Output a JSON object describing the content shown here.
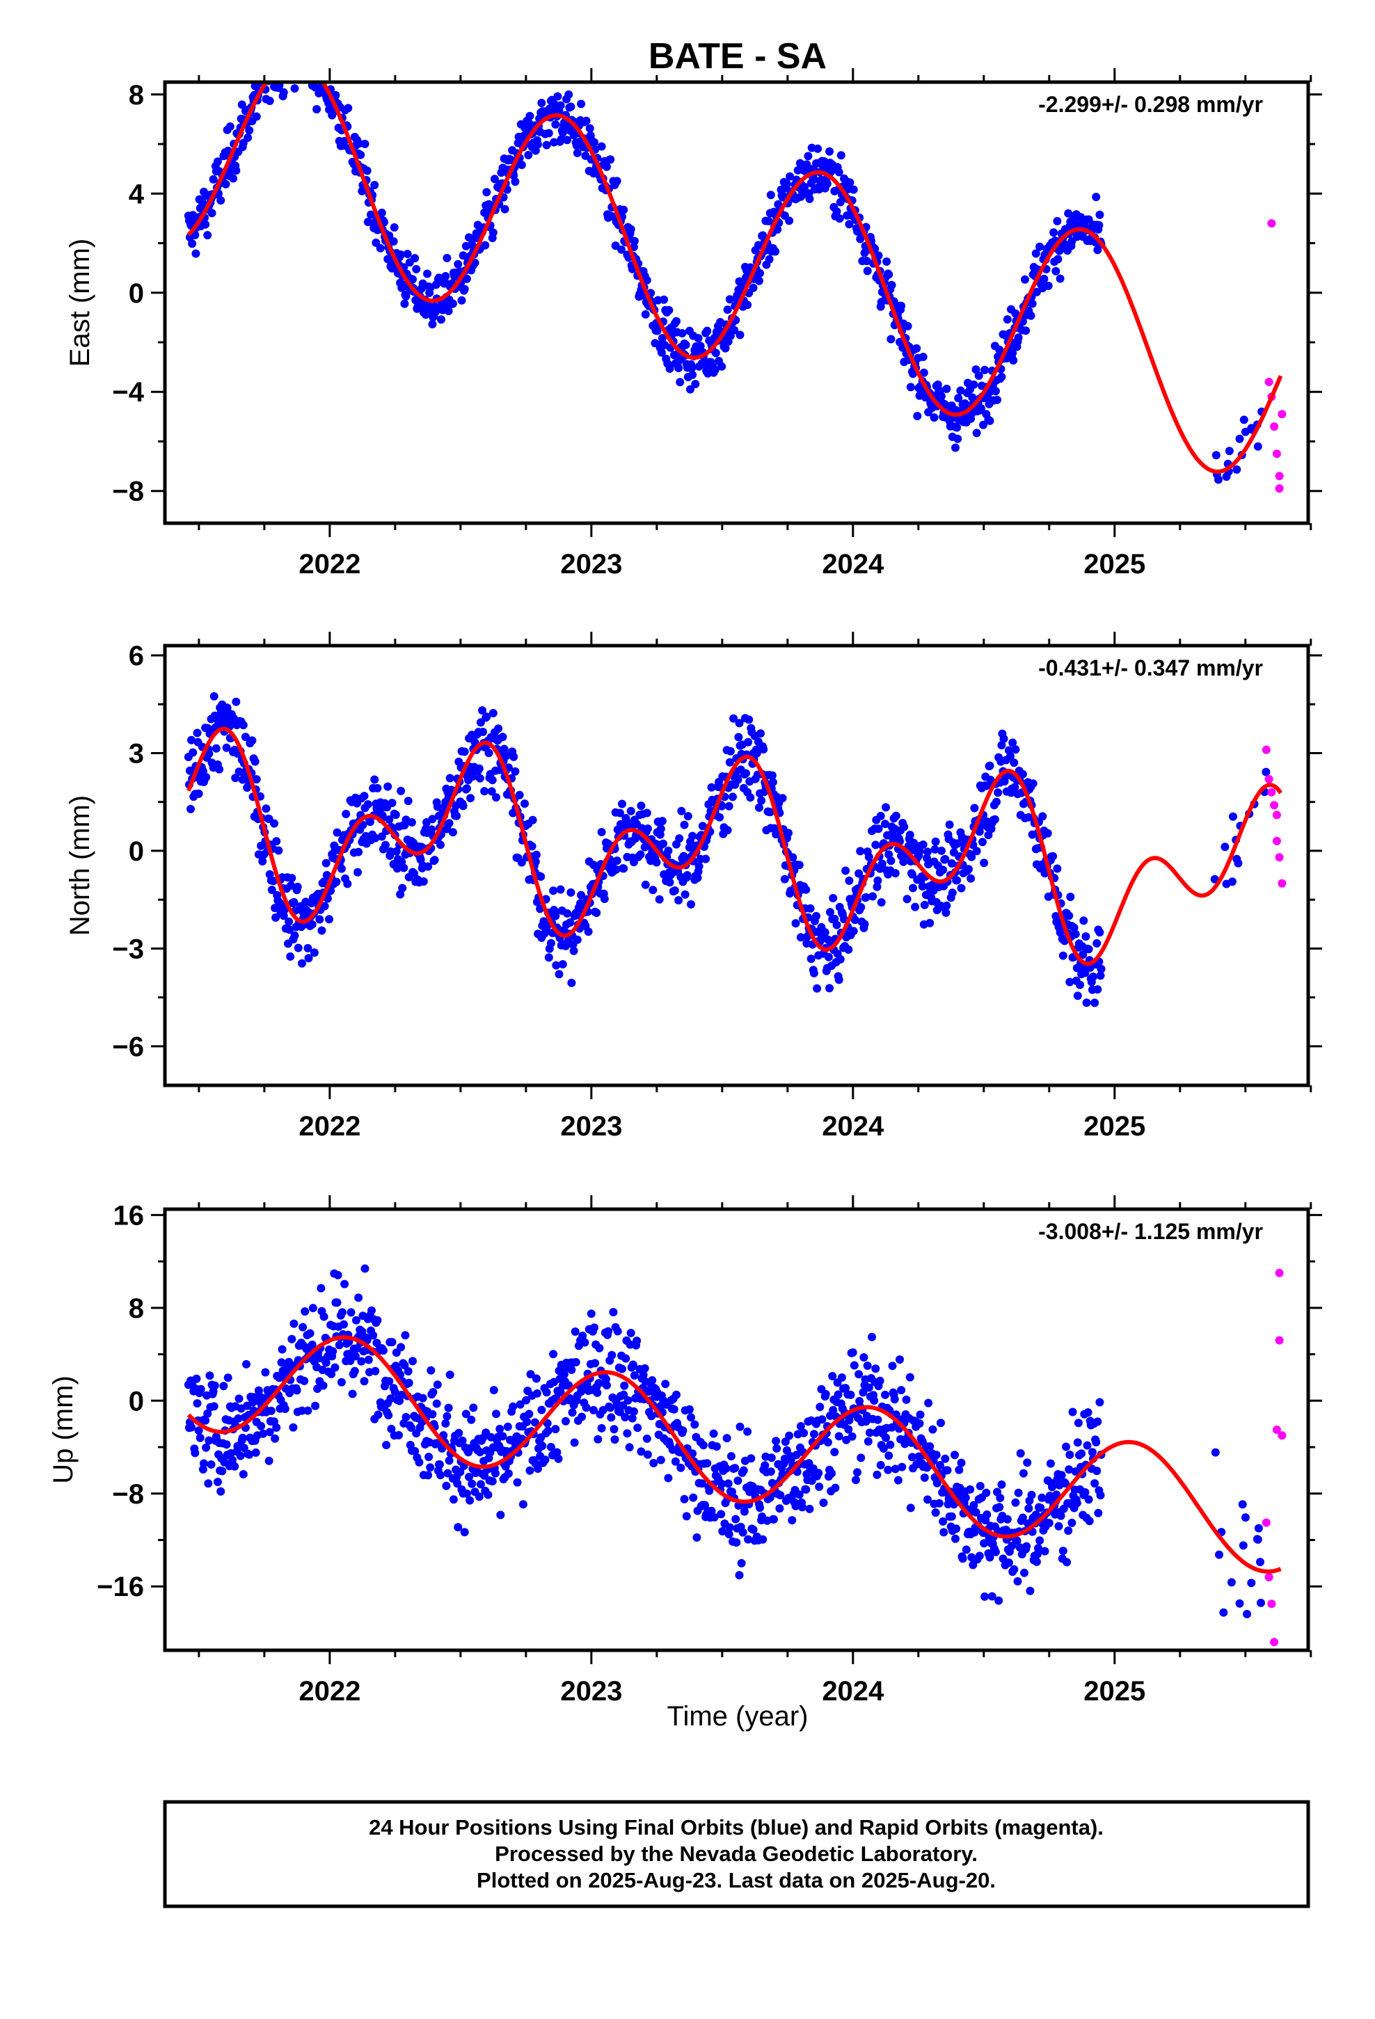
{
  "chart_data": {
    "type": "scatter",
    "title": "BATE - SA",
    "xlabel": "Time (year)",
    "x_ticks": [
      "2022",
      "2023",
      "2024",
      "2025"
    ],
    "xlim": [
      2021.37,
      2025.74
    ],
    "series_legend": {
      "final_color": "#0000ff",
      "rapid_color": "#ff00ff",
      "model_color": "#ff0000"
    },
    "panels": [
      {
        "ylabel": "East (mm)",
        "ylim": [
          -9.3,
          8.5
        ],
        "y_ticks": [
          8,
          4,
          0,
          -4,
          -8
        ],
        "y_tick_labels": [
          "8",
          "4",
          "0",
          "−4",
          "−8"
        ],
        "rate_text": "-2.299+/- 0.298 mm/yr",
        "model": {
          "offset": 6.13,
          "rate": -2.299,
          "ref": 2021.45,
          "a1": 4.3,
          "ph1": 0.88,
          "a2": 0.0,
          "ph2": 0.0
        },
        "noise": 0.9,
        "rapid": [
          [
            2025.59,
            -3.6
          ],
          [
            2025.6,
            -4.2
          ],
          [
            2025.61,
            -5.4
          ],
          [
            2025.62,
            -6.5
          ],
          [
            2025.63,
            -7.4
          ],
          [
            2025.63,
            -7.9
          ],
          [
            2025.64,
            -4.9
          ],
          [
            2025.6,
            2.8
          ]
        ]
      },
      {
        "ylabel": "North (mm)",
        "ylim": [
          -7.2,
          6.3
        ],
        "y_ticks": [
          6,
          3,
          0,
          -3,
          -6
        ],
        "y_tick_labels": [
          "6",
          "3",
          "0",
          "−3",
          "−6"
        ],
        "rate_text": "-0.431+/- 0.347 mm/yr",
        "model": {
          "offset": 0.0,
          "rate": -0.431,
          "ref": 2023.5,
          "a1": 1.7,
          "ph1": 0.5,
          "a2": 1.6,
          "ph2": 0.12
        },
        "noise": 1.0,
        "rapid": [
          [
            2025.58,
            3.1
          ],
          [
            2025.59,
            2.2
          ],
          [
            2025.6,
            1.8
          ],
          [
            2025.61,
            1.4
          ],
          [
            2025.62,
            1.1
          ],
          [
            2025.62,
            0.3
          ],
          [
            2025.63,
            -0.2
          ],
          [
            2025.64,
            -1.0
          ]
        ]
      },
      {
        "ylabel": "Up (mm)",
        "ylim": [
          -21.5,
          16.5
        ],
        "y_ticks": [
          16,
          8,
          0,
          -8,
          -16
        ],
        "y_tick_labels": [
          "16",
          "8",
          "0",
          "−8",
          "−16"
        ],
        "rate_text": "-3.008+/- 1.125 mm/yr",
        "model": {
          "offset": 2.5,
          "rate": -3.008,
          "ref": 2021.45,
          "a1": 4.8,
          "ph1": 0.07,
          "a2": 0.0,
          "ph2": 0.0
        },
        "noise": 4.0,
        "rapid": [
          [
            2025.58,
            -10.5
          ],
          [
            2025.59,
            -15.2
          ],
          [
            2025.6,
            -17.5
          ],
          [
            2025.61,
            -20.8
          ],
          [
            2025.62,
            -2.5
          ],
          [
            2025.63,
            5.2
          ],
          [
            2025.63,
            11.0
          ],
          [
            2025.64,
            -3.0
          ]
        ]
      }
    ]
  },
  "footer": {
    "line1": "24 Hour Positions Using Final Orbits (blue) and Rapid Orbits (magenta).",
    "line2": "Processed by the Nevada Geodetic Laboratory.",
    "line3": "Plotted on 2025-Aug-23. Last data on 2025-Aug-20."
  }
}
